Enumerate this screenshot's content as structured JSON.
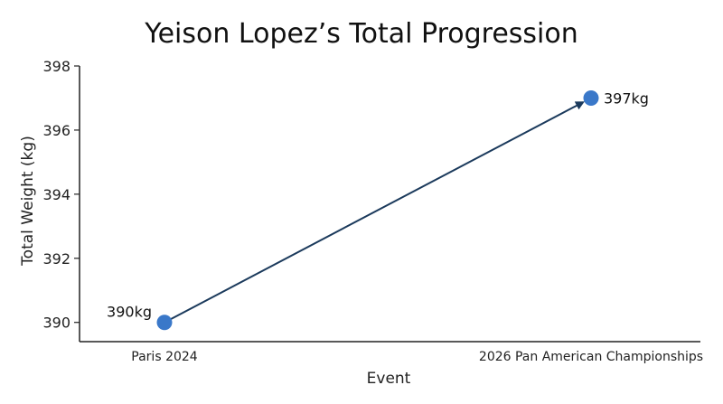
{
  "chart_data": {
    "type": "scatter",
    "title": "Yeison Lopez’s Total Progression",
    "xlabel": "Event",
    "ylabel": "Total Weight (kg)",
    "categories": [
      "Paris 2024",
      "2026 Pan American Championships"
    ],
    "values": [
      390,
      397
    ],
    "data_labels": [
      "390kg",
      "397kg"
    ],
    "ylim": [
      389.4,
      398
    ],
    "yticks": [
      390,
      392,
      394,
      396,
      398
    ],
    "grid": false,
    "legend": "none",
    "connector": "arrow",
    "colors": {
      "point": "#3a78c9",
      "arrow": "#1b3a5c",
      "axis": "#222222"
    }
  }
}
